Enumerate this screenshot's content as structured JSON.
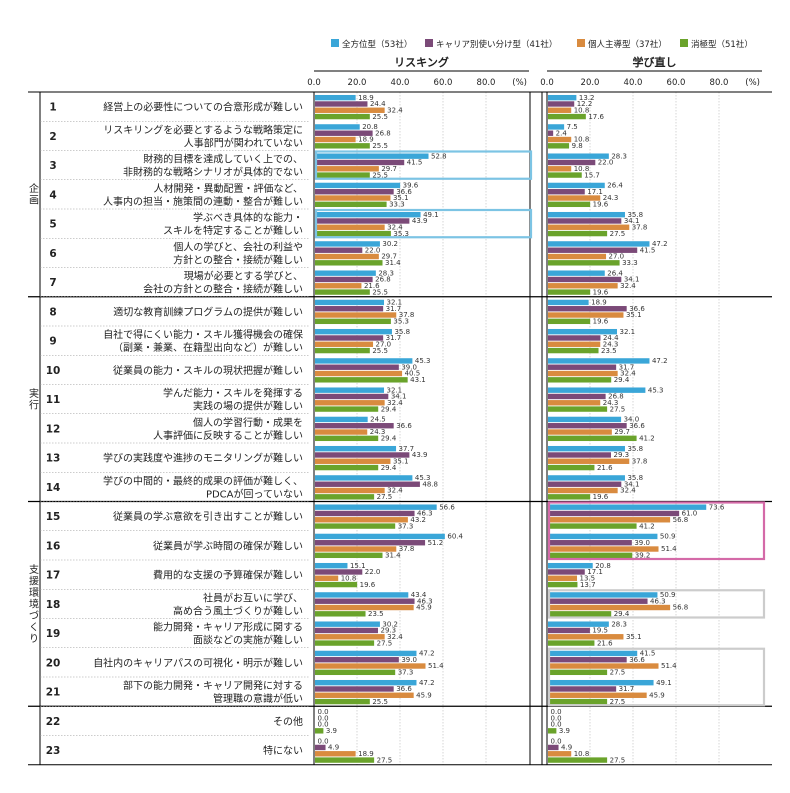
{
  "chart_data": {
    "type": "bar",
    "orientation": "horizontal",
    "unit": "(%)",
    "legend": [
      {
        "name": "全方位型（53社）",
        "color": "#3aa6d8"
      },
      {
        "name": "キャリア別使い分け型（41社）",
        "color": "#7b4a78"
      },
      {
        "name": "個人主導型（37社）",
        "color": "#d98b3f"
      },
      {
        "name": "消極型（51社）",
        "color": "#6aa32b"
      }
    ],
    "panels": [
      {
        "title": "リスキング",
        "ticks": [
          "0.0",
          "20.0",
          "40.0",
          "60.0",
          "80.0"
        ],
        "unit": "(%)"
      },
      {
        "title": "学び直し",
        "ticks": [
          "0.0",
          "20.0",
          "40.0",
          "60.0",
          "80.0"
        ],
        "unit": "(%)"
      }
    ],
    "xlim": [
      0,
      100
    ],
    "groups": [
      {
        "label": "企画",
        "from": 1,
        "to": 7
      },
      {
        "label": "実行",
        "from": 8,
        "to": 14
      },
      {
        "label": "支援環境づくり",
        "from": 15,
        "to": 21
      }
    ],
    "categories": [
      {
        "num": "1",
        "label": [
          "経営上の必要性についての合意形成が難しい"
        ],
        "reskilling": [
          18.9,
          24.4,
          32.4,
          25.5
        ],
        "relearning": [
          13.2,
          12.2,
          10.8,
          17.6
        ]
      },
      {
        "num": "2",
        "label": [
          "リスキリングを必要とするような戦略策定に",
          "人事部門が関われていない"
        ],
        "reskilling": [
          20.8,
          26.8,
          18.9,
          25.5
        ],
        "relearning": [
          7.5,
          2.4,
          10.8,
          9.8
        ]
      },
      {
        "num": "3",
        "label": [
          "財務的目標を達成していく上での、",
          "非財務的な戦略シナリオが具体的でない"
        ],
        "reskilling": [
          52.8,
          41.5,
          29.7,
          25.5
        ],
        "relearning": [
          28.3,
          22.0,
          10.8,
          15.7
        ]
      },
      {
        "num": "4",
        "label": [
          "人材開発・異動配置・評価など、",
          "人事内の担当・施策間の連動・整合が難しい"
        ],
        "reskilling": [
          39.6,
          36.6,
          35.1,
          33.3
        ],
        "relearning": [
          26.4,
          17.1,
          24.3,
          19.6
        ]
      },
      {
        "num": "5",
        "label": [
          "学ぶべき具体的な能力・",
          "スキルを特定することが難しい"
        ],
        "reskilling": [
          49.1,
          43.9,
          32.4,
          35.3
        ],
        "relearning": [
          35.8,
          34.1,
          37.8,
          27.5
        ]
      },
      {
        "num": "6",
        "label": [
          "個人の学びと、会社の利益や",
          "方針との整合・接続が難しい"
        ],
        "reskilling": [
          30.2,
          22.0,
          29.7,
          31.4
        ],
        "relearning": [
          47.2,
          41.5,
          27.0,
          33.3
        ]
      },
      {
        "num": "7",
        "label": [
          "現場が必要とする学びと、",
          "会社の方針との整合・接続が難しい"
        ],
        "reskilling": [
          28.3,
          26.8,
          21.6,
          25.5
        ],
        "relearning": [
          26.4,
          34.1,
          32.4,
          19.6
        ]
      },
      {
        "num": "8",
        "label": [
          "適切な教育訓練プログラムの提供が難しい"
        ],
        "reskilling": [
          32.1,
          31.7,
          37.8,
          35.3
        ],
        "relearning": [
          18.9,
          36.6,
          35.1,
          19.6
        ]
      },
      {
        "num": "9",
        "label": [
          "自社で得にくい能力・スキル獲得機会の確保",
          "（副業・兼業、在籍型出向など）が難しい"
        ],
        "reskilling": [
          35.8,
          31.7,
          27.0,
          25.5
        ],
        "relearning": [
          32.1,
          24.4,
          24.3,
          23.5
        ]
      },
      {
        "num": "10",
        "label": [
          "従業員の能力・スキルの現状把握が難しい"
        ],
        "reskilling": [
          45.3,
          39.0,
          40.5,
          43.1
        ],
        "relearning": [
          47.2,
          31.7,
          32.4,
          29.4
        ]
      },
      {
        "num": "11",
        "label": [
          "学んだ能力・スキルを発揮する",
          "実践の場の提供が難しい"
        ],
        "reskilling": [
          32.1,
          34.1,
          32.4,
          29.4
        ],
        "relearning": [
          45.3,
          26.8,
          24.3,
          27.5
        ]
      },
      {
        "num": "12",
        "label": [
          "個人の学習行動・成果を",
          "人事評価に反映することが難しい"
        ],
        "reskilling": [
          24.5,
          36.6,
          24.3,
          29.4
        ],
        "relearning": [
          34.0,
          36.6,
          29.7,
          41.2
        ]
      },
      {
        "num": "13",
        "label": [
          "学びの実践度や進捗のモニタリングが難しい"
        ],
        "reskilling": [
          37.7,
          43.9,
          35.1,
          29.4
        ],
        "relearning": [
          35.8,
          29.3,
          37.8,
          21.6
        ]
      },
      {
        "num": "14",
        "label": [
          "学びの中間的・最終的成果の評価が難しく、",
          "PDCAが回っていない"
        ],
        "reskilling": [
          45.3,
          48.8,
          32.4,
          27.5
        ],
        "relearning": [
          35.8,
          34.1,
          32.4,
          19.6
        ]
      },
      {
        "num": "15",
        "label": [
          "従業員の学ぶ意欲を引き出すことが難しい"
        ],
        "reskilling": [
          56.6,
          46.3,
          43.2,
          37.3
        ],
        "relearning": [
          73.6,
          61.0,
          56.8,
          41.2
        ]
      },
      {
        "num": "16",
        "label": [
          "従業員が学ぶ時間の確保が難しい"
        ],
        "reskilling": [
          60.4,
          51.2,
          37.8,
          31.4
        ],
        "relearning": [
          50.9,
          39.0,
          51.4,
          39.2
        ]
      },
      {
        "num": "17",
        "label": [
          "費用的な支援の予算確保が難しい"
        ],
        "reskilling": [
          15.1,
          22.0,
          10.8,
          19.6
        ],
        "relearning": [
          20.8,
          17.1,
          13.5,
          13.7
        ]
      },
      {
        "num": "18",
        "label": [
          "社員がお互いに学び、",
          "高め合う風土づくりが難しい"
        ],
        "reskilling": [
          43.4,
          46.3,
          45.9,
          23.5
        ],
        "relearning": [
          50.9,
          46.3,
          56.8,
          29.4
        ]
      },
      {
        "num": "19",
        "label": [
          "能力開発・キャリア形成に関する",
          "面談などの実施が難しい"
        ],
        "reskilling": [
          30.2,
          29.3,
          32.4,
          27.5
        ],
        "relearning": [
          28.3,
          19.5,
          35.1,
          21.6
        ]
      },
      {
        "num": "20",
        "label": [
          "自社内のキャリアパスの可視化・明示が難しい"
        ],
        "reskilling": [
          47.2,
          39.0,
          51.4,
          37.3
        ],
        "relearning": [
          41.5,
          36.6,
          51.4,
          27.5
        ]
      },
      {
        "num": "21",
        "label": [
          "部下の能力開発・キャリア開発に対する",
          "管理職の意識が低い"
        ],
        "reskilling": [
          47.2,
          36.6,
          45.9,
          25.5
        ],
        "relearning": [
          49.1,
          31.7,
          45.9,
          27.5
        ]
      },
      {
        "num": "22",
        "label": [
          "その他"
        ],
        "reskilling": [
          0.0,
          0.0,
          0.0,
          3.9
        ],
        "relearning": [
          0.0,
          0.0,
          0.0,
          3.9
        ]
      },
      {
        "num": "23",
        "label": [
          "特にない"
        ],
        "reskilling": [
          0.0,
          4.9,
          18.9,
          27.5
        ],
        "relearning": [
          0.0,
          4.9,
          10.8,
          27.5
        ]
      }
    ],
    "highlights": [
      {
        "panel": 0,
        "from": 3,
        "to": 3,
        "color": "#7cc4e4"
      },
      {
        "panel": 0,
        "from": 5,
        "to": 5,
        "color": "#7cc4e4"
      },
      {
        "panel": 1,
        "from": 15,
        "to": 16,
        "color": "#d46aa8"
      },
      {
        "panel": 1,
        "from": 18,
        "to": 18,
        "color": "#cccccc"
      },
      {
        "panel": 1,
        "from": 20,
        "to": 21,
        "color": "#cccccc"
      }
    ]
  }
}
